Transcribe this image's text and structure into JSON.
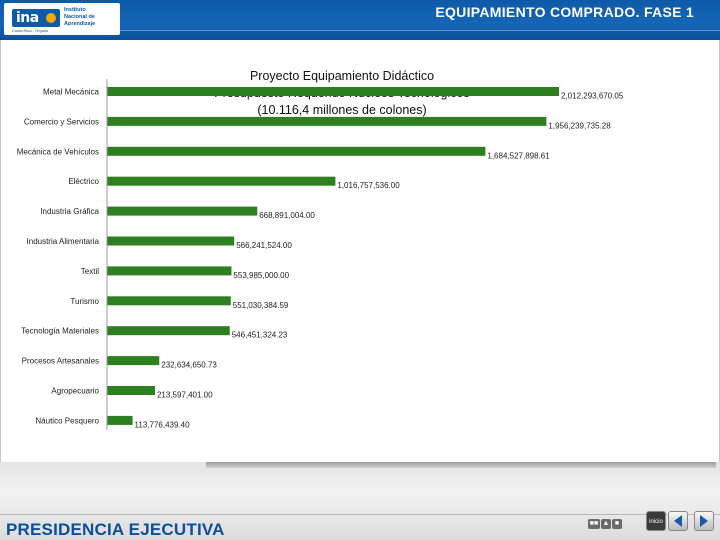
{
  "header": {
    "title": "EQUIPAMIENTO COMPRADO. FASE 1",
    "logo_mark": "ina",
    "logo_name_lines": [
      "Instituto",
      "Nacional de",
      "Aprendizaje"
    ],
    "logo_sub": "Costa Rica - Orgullo"
  },
  "footer": {
    "title": "PRESIDENCIA EJECUTIVA",
    "tools": [
      "■■",
      "▲",
      "■"
    ],
    "nav_home_label": "inicio"
  },
  "colors": {
    "header": "#1466b8",
    "bar": "#2e7f1f",
    "footer_title": "#0d4e9c"
  },
  "chart_data": {
    "type": "bar",
    "orientation": "horizontal",
    "title_lines": [
      "Proyecto Equipamiento Didáctico",
      "Presupuesto Requerido Núcleos Tecnológicos",
      "(10.116,4 millones de colones)"
    ],
    "xlim": [
      0,
      2012293670.05
    ],
    "grid": false,
    "legend": "none",
    "categories": [
      "Metal Mecánica",
      "Comercio y Servicios",
      "Mecánica de Vehículos",
      "Eléctrico",
      "Industria Gráfica",
      "Industria Alimentaria",
      "Textil",
      "Turismo",
      "Tecnología Materiales",
      "Procesos Artesanales",
      "Agropecuario",
      "Náutico Pesquero"
    ],
    "values": [
      2012293670.05,
      1956239735.28,
      1684527898.61,
      1016757536.0,
      668891004.0,
      566241524.0,
      553985000.0,
      551030384.59,
      546451324.23,
      232634650.73,
      213597401.0,
      113776439.4
    ],
    "value_labels": [
      "2,012,293,670.05",
      "1,956,239,735.28",
      "1,684,527,898.61",
      "1,016,757,536.00",
      "668,891,004.00",
      "566,241,524.00",
      "553,985,000.00",
      "551,030,384.59",
      "546,451,324.23",
      "232,634,650.73",
      "213,597,401.00",
      "113,776,439.40"
    ]
  }
}
